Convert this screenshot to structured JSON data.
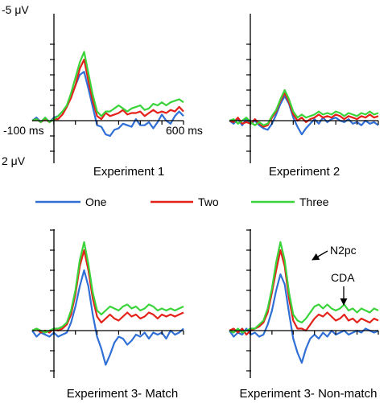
{
  "axis_labels": {
    "y_top": "-5 μV",
    "y_bottom": "2 μV",
    "x_left": "-100 ms",
    "x_right": "600 ms"
  },
  "legend": {
    "one": "One",
    "two": "Two",
    "three": "Three"
  },
  "annotations": {
    "n2pc": "N2pc",
    "cda": "CDA"
  },
  "colors": {
    "one": "#2f6fd6",
    "two": "#e32119",
    "three": "#3ad43a",
    "axis": "#000000"
  },
  "chart_data": [
    {
      "type": "line",
      "title": "Experiment 1",
      "xlabel": "",
      "ylabel": "",
      "xlim": [
        -100,
        600
      ],
      "ylim": [
        2,
        -5
      ],
      "y_axis_inverted": true,
      "x": [
        -100,
        -80,
        -60,
        -40,
        -20,
        0,
        20,
        40,
        60,
        80,
        100,
        120,
        140,
        160,
        180,
        200,
        220,
        240,
        260,
        280,
        300,
        320,
        340,
        360,
        380,
        400,
        420,
        440,
        460,
        480,
        500,
        520,
        540,
        560,
        580,
        600
      ],
      "series": [
        {
          "name": "One",
          "values": [
            0.0,
            -0.2,
            0.1,
            -0.2,
            0.1,
            -0.2,
            -0.3,
            -0.6,
            -0.9,
            -1.6,
            -2.3,
            -3.0,
            -3.2,
            -2.1,
            -0.9,
            0.3,
            0.4,
            0.9,
            1.0,
            0.6,
            0.5,
            0.2,
            0.3,
            0.4,
            -0.1,
            0.3,
            0.3,
            0.1,
            0.5,
            0.1,
            -0.4,
            0.0,
            0.2,
            -0.3,
            -0.6,
            -0.3
          ]
        },
        {
          "name": "Two",
          "values": [
            0.0,
            -0.1,
            0.1,
            -0.1,
            0.1,
            -0.1,
            -0.1,
            -0.4,
            -0.9,
            -1.5,
            -2.3,
            -3.4,
            -4.0,
            -2.6,
            -1.3,
            -0.3,
            -0.1,
            -0.5,
            -0.3,
            -0.4,
            -0.5,
            -0.7,
            -0.4,
            -0.5,
            -0.5,
            -0.6,
            -0.3,
            -0.5,
            -0.7,
            -0.5,
            -0.6,
            -0.5,
            -0.7,
            -0.6,
            -0.9,
            -0.6
          ]
        },
        {
          "name": "Three",
          "values": [
            0.0,
            -0.1,
            0.1,
            -0.2,
            0.1,
            -0.1,
            -0.3,
            -0.6,
            -1.0,
            -1.8,
            -2.8,
            -3.8,
            -4.5,
            -3.1,
            -1.7,
            -0.6,
            -0.3,
            -0.6,
            -0.6,
            -0.8,
            -1.0,
            -0.8,
            -0.6,
            -0.8,
            -0.9,
            -1.0,
            -0.7,
            -0.8,
            -1.1,
            -1.0,
            -1.2,
            -1.0,
            -1.2,
            -1.3,
            -1.4,
            -1.2
          ]
        }
      ]
    },
    {
      "type": "line",
      "title": "Experiment 2",
      "xlabel": "",
      "ylabel": "",
      "xlim": [
        -100,
        600
      ],
      "ylim": [
        2,
        -5
      ],
      "y_axis_inverted": true,
      "x": [
        -100,
        -80,
        -60,
        -40,
        -20,
        0,
        20,
        40,
        60,
        80,
        100,
        120,
        140,
        160,
        180,
        200,
        220,
        240,
        260,
        280,
        300,
        320,
        340,
        360,
        380,
        400,
        420,
        440,
        460,
        480,
        500,
        520,
        540,
        560,
        580,
        600
      ],
      "series": [
        {
          "name": "One",
          "values": [
            0.0,
            0.2,
            -0.1,
            0.3,
            -0.1,
            0.2,
            0.0,
            0.3,
            0.5,
            0.6,
            0.2,
            -0.4,
            -1.1,
            -1.6,
            -1.1,
            -0.2,
            0.4,
            0.9,
            0.5,
            0.2,
            -0.1,
            0.2,
            -0.2,
            0.1,
            -0.1,
            -0.2,
            0.0,
            0.1,
            -0.1,
            0.2,
            0.1,
            0.3,
            0.0,
            0.2,
            0.1,
            0.3
          ]
        },
        {
          "name": "Two",
          "values": [
            0.0,
            0.1,
            -0.2,
            0.2,
            0.1,
            0.2,
            -0.1,
            0.2,
            0.4,
            0.3,
            -0.2,
            -0.6,
            -1.3,
            -1.8,
            -1.2,
            -0.4,
            0.0,
            -0.2,
            0.1,
            -0.1,
            -0.2,
            -0.4,
            -0.2,
            -0.3,
            -0.2,
            -0.4,
            -0.3,
            -0.1,
            -0.3,
            -0.2,
            -0.1,
            -0.3,
            -0.2,
            -0.4,
            -0.2,
            -0.3
          ]
        },
        {
          "name": "Three",
          "values": [
            0.0,
            -0.1,
            0.2,
            0.0,
            -0.2,
            0.1,
            0.3,
            0.1,
            0.3,
            0.2,
            -0.3,
            -0.7,
            -1.4,
            -2.0,
            -1.4,
            -0.6,
            -0.2,
            -0.4,
            -0.2,
            -0.3,
            -0.4,
            -0.6,
            -0.4,
            -0.5,
            -0.4,
            -0.6,
            -0.5,
            -0.3,
            -0.5,
            -0.4,
            -0.3,
            -0.5,
            -0.4,
            -0.6,
            -0.4,
            -0.5
          ]
        }
      ]
    },
    {
      "type": "line",
      "title": "Experiment 3- Match",
      "xlabel": "",
      "ylabel": "",
      "xlim": [
        -100,
        600
      ],
      "ylim": [
        2,
        -5
      ],
      "y_axis_inverted": true,
      "x": [
        -100,
        -80,
        -60,
        -40,
        -20,
        0,
        20,
        40,
        60,
        80,
        100,
        120,
        140,
        160,
        180,
        200,
        220,
        240,
        260,
        280,
        300,
        320,
        340,
        360,
        380,
        400,
        420,
        440,
        460,
        480,
        500,
        520,
        540,
        560,
        580,
        600
      ],
      "series": [
        {
          "name": "One",
          "values": [
            0.0,
            0.3,
            0.1,
            0.2,
            0.3,
            0.1,
            0.3,
            0.2,
            0.1,
            -0.4,
            -1.2,
            -2.2,
            -3.0,
            -2.2,
            -0.8,
            0.3,
            0.9,
            1.7,
            1.2,
            0.6,
            0.3,
            0.4,
            0.7,
            0.5,
            0.2,
            0.3,
            0.1,
            0.4,
            0.1,
            0.2,
            0.1,
            0.4,
            0.0,
            0.2,
            0.1,
            -0.1
          ]
        },
        {
          "name": "Two",
          "values": [
            0.0,
            -0.1,
            0.1,
            0.0,
            0.1,
            -0.1,
            0.0,
            -0.1,
            -0.3,
            -0.8,
            -1.8,
            -3.2,
            -4.0,
            -3.0,
            -1.6,
            -0.7,
            -0.4,
            -0.6,
            -0.8,
            -0.6,
            -0.5,
            -0.7,
            -0.9,
            -0.7,
            -0.8,
            -0.6,
            -0.7,
            -0.9,
            -0.8,
            -0.6,
            -0.8,
            -0.7,
            -0.8,
            -0.7,
            -0.8,
            -0.9
          ]
        },
        {
          "name": "Three",
          "values": [
            0.0,
            -0.1,
            0.0,
            0.1,
            0.0,
            -0.1,
            -0.1,
            -0.2,
            -0.4,
            -1.0,
            -2.0,
            -3.5,
            -4.4,
            -3.3,
            -1.9,
            -1.0,
            -0.8,
            -1.0,
            -1.2,
            -1.1,
            -1.0,
            -1.2,
            -1.3,
            -1.1,
            -1.2,
            -1.0,
            -1.1,
            -1.3,
            -1.2,
            -1.0,
            -1.1,
            -1.0,
            -1.1,
            -1.0,
            -1.1,
            -1.2
          ]
        }
      ]
    },
    {
      "type": "line",
      "title": "Experiment 3- Non-match",
      "xlabel": "",
      "ylabel": "",
      "xlim": [
        -100,
        600
      ],
      "ylim": [
        2,
        -5
      ],
      "y_axis_inverted": true,
      "x": [
        -100,
        -80,
        -60,
        -40,
        -20,
        0,
        20,
        40,
        60,
        80,
        100,
        120,
        140,
        160,
        180,
        200,
        220,
        240,
        260,
        280,
        300,
        320,
        340,
        360,
        380,
        400,
        420,
        440,
        460,
        480,
        500,
        520,
        540,
        560,
        580,
        600
      ],
      "series": [
        {
          "name": "One",
          "values": [
            0.0,
            0.3,
            0.1,
            0.2,
            -0.1,
            0.2,
            0.1,
            0.3,
            0.2,
            -0.3,
            -1.0,
            -2.0,
            -2.8,
            -2.3,
            -0.9,
            0.4,
            1.1,
            1.6,
            0.9,
            0.4,
            0.2,
            0.4,
            0.1,
            0.3,
            0.0,
            0.2,
            0.1,
            0.0,
            0.2,
            0.1,
            0.0,
            0.1,
            -0.1,
            0.0,
            0.1,
            0.0
          ]
        },
        {
          "name": "Two",
          "values": [
            0.0,
            -0.1,
            0.1,
            -0.1,
            0.2,
            0.0,
            -0.1,
            -0.2,
            -0.4,
            -0.9,
            -1.9,
            -3.0,
            -4.0,
            -3.2,
            -1.6,
            -0.5,
            -0.1,
            -0.1,
            0.0,
            -0.3,
            -0.6,
            -0.8,
            -0.7,
            -0.9,
            -0.7,
            -0.5,
            -0.6,
            -0.8,
            -0.5,
            -0.6,
            -0.4,
            -0.6,
            -0.5,
            -0.4,
            -0.6,
            -0.5
          ]
        },
        {
          "name": "Three",
          "values": [
            0.0,
            0.1,
            -0.1,
            0.1,
            0.0,
            -0.1,
            -0.1,
            -0.3,
            -0.5,
            -1.1,
            -2.1,
            -3.4,
            -4.4,
            -3.5,
            -1.9,
            -0.8,
            -0.5,
            -0.4,
            -0.6,
            -0.9,
            -1.2,
            -1.3,
            -1.1,
            -1.3,
            -1.1,
            -1.0,
            -1.1,
            -1.3,
            -1.0,
            -1.1,
            -0.9,
            -1.1,
            -1.0,
            -0.9,
            -1.1,
            -1.0
          ]
        }
      ]
    }
  ]
}
